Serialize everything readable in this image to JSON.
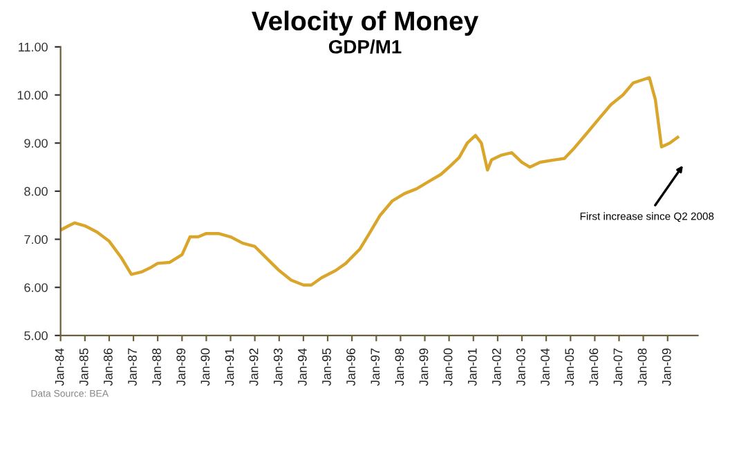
{
  "chart_data": {
    "type": "line",
    "title": "Velocity of Money",
    "subtitle": "GDP/M1",
    "x": [
      "1984-01",
      "1984-05",
      "1984-08",
      "1985-01",
      "1985-07",
      "1986-01",
      "1986-07",
      "1986-12",
      "1987-05",
      "1987-09",
      "1988-01",
      "1988-07",
      "1989-01",
      "1989-05",
      "1989-09",
      "1990-01",
      "1990-07",
      "1991-01",
      "1991-07",
      "1992-01",
      "1992-07",
      "1993-01",
      "1993-07",
      "1994-01",
      "1994-05",
      "1994-10",
      "1995-05",
      "1995-10",
      "1996-05",
      "1996-10",
      "1997-03",
      "1997-09",
      "1998-03",
      "1998-09",
      "1999-03",
      "1999-09",
      "2000-01",
      "2000-06",
      "2000-10",
      "2001-02",
      "2001-05",
      "2001-08",
      "2001-10",
      "2002-03",
      "2002-08",
      "2003-01",
      "2003-05",
      "2003-10",
      "2004-05",
      "2004-10",
      "2005-03",
      "2005-09",
      "2006-03",
      "2006-09",
      "2007-03",
      "2007-08",
      "2008-01",
      "2008-04",
      "2008-07",
      "2008-10",
      "2009-02",
      "2009-06"
    ],
    "series": [
      {
        "color": "#d9a62b",
        "values": [
          7.19,
          7.28,
          7.34,
          7.28,
          7.15,
          6.96,
          6.62,
          6.27,
          6.32,
          6.4,
          6.5,
          6.52,
          6.68,
          7.05,
          7.05,
          7.12,
          7.12,
          7.05,
          6.92,
          6.85,
          6.6,
          6.35,
          6.15,
          6.05,
          6.05,
          6.2,
          6.35,
          6.5,
          6.8,
          7.15,
          7.5,
          7.8,
          7.95,
          8.05,
          8.2,
          8.35,
          8.5,
          8.7,
          9.0,
          9.16,
          9.0,
          8.44,
          8.65,
          8.75,
          8.8,
          8.6,
          8.5,
          8.6,
          8.65,
          8.68,
          8.9,
          9.2,
          9.5,
          9.8,
          10.0,
          10.25,
          10.32,
          10.36,
          9.9,
          8.92,
          9.0,
          9.12
        ]
      }
    ],
    "xlim": [
      "1984-01",
      "2010-04"
    ],
    "xticks": [
      {
        "value": "1984-01",
        "label": "Jan-84"
      },
      {
        "value": "1985-01",
        "label": "Jan-85"
      },
      {
        "value": "1986-01",
        "label": "Jan-86"
      },
      {
        "value": "1987-01",
        "label": "Jan-87"
      },
      {
        "value": "1988-01",
        "label": "Jan-88"
      },
      {
        "value": "1989-01",
        "label": "Jan-89"
      },
      {
        "value": "1990-01",
        "label": "Jan-90"
      },
      {
        "value": "1991-01",
        "label": "Jan-91"
      },
      {
        "value": "1992-01",
        "label": "Jan-92"
      },
      {
        "value": "1993-01",
        "label": "Jan-93"
      },
      {
        "value": "1994-01",
        "label": "Jan-94"
      },
      {
        "value": "1995-01",
        "label": "Jan-95"
      },
      {
        "value": "1996-01",
        "label": "Jan-96"
      },
      {
        "value": "1997-01",
        "label": "Jan-97"
      },
      {
        "value": "1998-01",
        "label": "Jan-98"
      },
      {
        "value": "1999-01",
        "label": "Jan-99"
      },
      {
        "value": "2000-01",
        "label": "Jan-00"
      },
      {
        "value": "2001-01",
        "label": "Jan-01"
      },
      {
        "value": "2002-01",
        "label": "Jan-02"
      },
      {
        "value": "2003-01",
        "label": "Jan-03"
      },
      {
        "value": "2004-01",
        "label": "Jan-04"
      },
      {
        "value": "2005-01",
        "label": "Jan-05"
      },
      {
        "value": "2006-01",
        "label": "Jan-06"
      },
      {
        "value": "2007-01",
        "label": "Jan-07"
      },
      {
        "value": "2008-01",
        "label": "Jan-08"
      },
      {
        "value": "2009-01",
        "label": "Jan-09"
      }
    ],
    "ylim": [
      5,
      11
    ],
    "yticks": [
      {
        "value": 5,
        "label": "5.00"
      },
      {
        "value": 6,
        "label": "6.00"
      },
      {
        "value": 7,
        "label": "7.00"
      },
      {
        "value": 8,
        "label": "8.00"
      },
      {
        "value": 9,
        "label": "9.00"
      },
      {
        "value": 10,
        "label": "10.00"
      },
      {
        "value": 11,
        "label": "11.00"
      }
    ],
    "grid": false,
    "marker": "none",
    "line_style": "solid",
    "annotations": [
      "First increase since Q2 2008",
      "Data Source: BEA"
    ]
  }
}
